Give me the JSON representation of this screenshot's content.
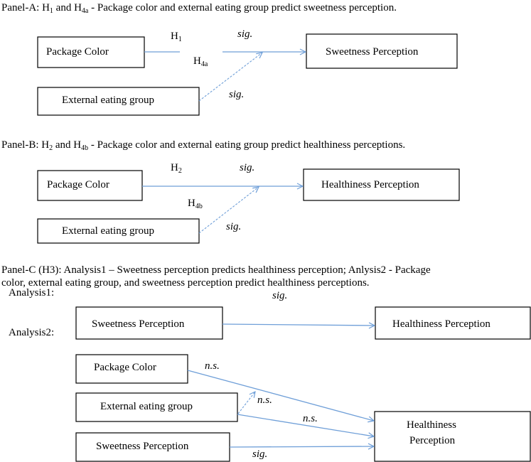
{
  "colors": {
    "arrow": "#6f9fd8",
    "text": "#000000"
  },
  "panel_a": {
    "title_prefix": "Panel-A: H",
    "title_h1_sub": "1",
    "title_mid": " and H",
    "title_h4_sub": "4a",
    "title_rest": " - Package color and external eating group predict sweetness perception.",
    "box_package": "Package Color",
    "box_external": "External eating group",
    "box_outcome": "Sweetness Perception",
    "h1": "H",
    "h1_sub": "1",
    "h4": "H",
    "h4_sub": "4a",
    "sig_main": "sig.",
    "sig_moderation": "sig."
  },
  "panel_b": {
    "title_prefix": "Panel-B: H",
    "title_h2_sub": "2",
    "title_mid": " and H",
    "title_h4_sub": "4b",
    "title_rest": " - Package color and external eating group predict healthiness perceptions.",
    "box_package": "Package Color",
    "box_external": "External eating group",
    "box_outcome": "Healthiness Perception",
    "h2": "H",
    "h2_sub": "2",
    "h4": "H",
    "h4_sub": "4b",
    "sig_main": "sig.",
    "sig_moderation": "sig."
  },
  "panel_c": {
    "title_line1": "Panel-C (H3): Analysis1 – Sweetness perception predicts healthiness perception; Anlysis2 - Package",
    "title_line2": "color, external eating group, and sweetness perception predict healthiness perceptions.",
    "analysis1": {
      "label": "Analysis1:",
      "box_predictor": "Sweetness Perception",
      "box_outcome": "Healthiness Perception",
      "sig": "sig."
    },
    "analysis2": {
      "label": "Analysis2:",
      "box_package": "Package Color",
      "box_external": "External eating group",
      "box_sweetness": "Sweetness Perception",
      "box_outcome_line1": "Healthiness",
      "box_outcome_line2": "Perception",
      "ns_package": "n.s.",
      "ns_moderation": "n.s.",
      "ns_external": "n.s.",
      "sig_sweetness": "sig."
    }
  }
}
